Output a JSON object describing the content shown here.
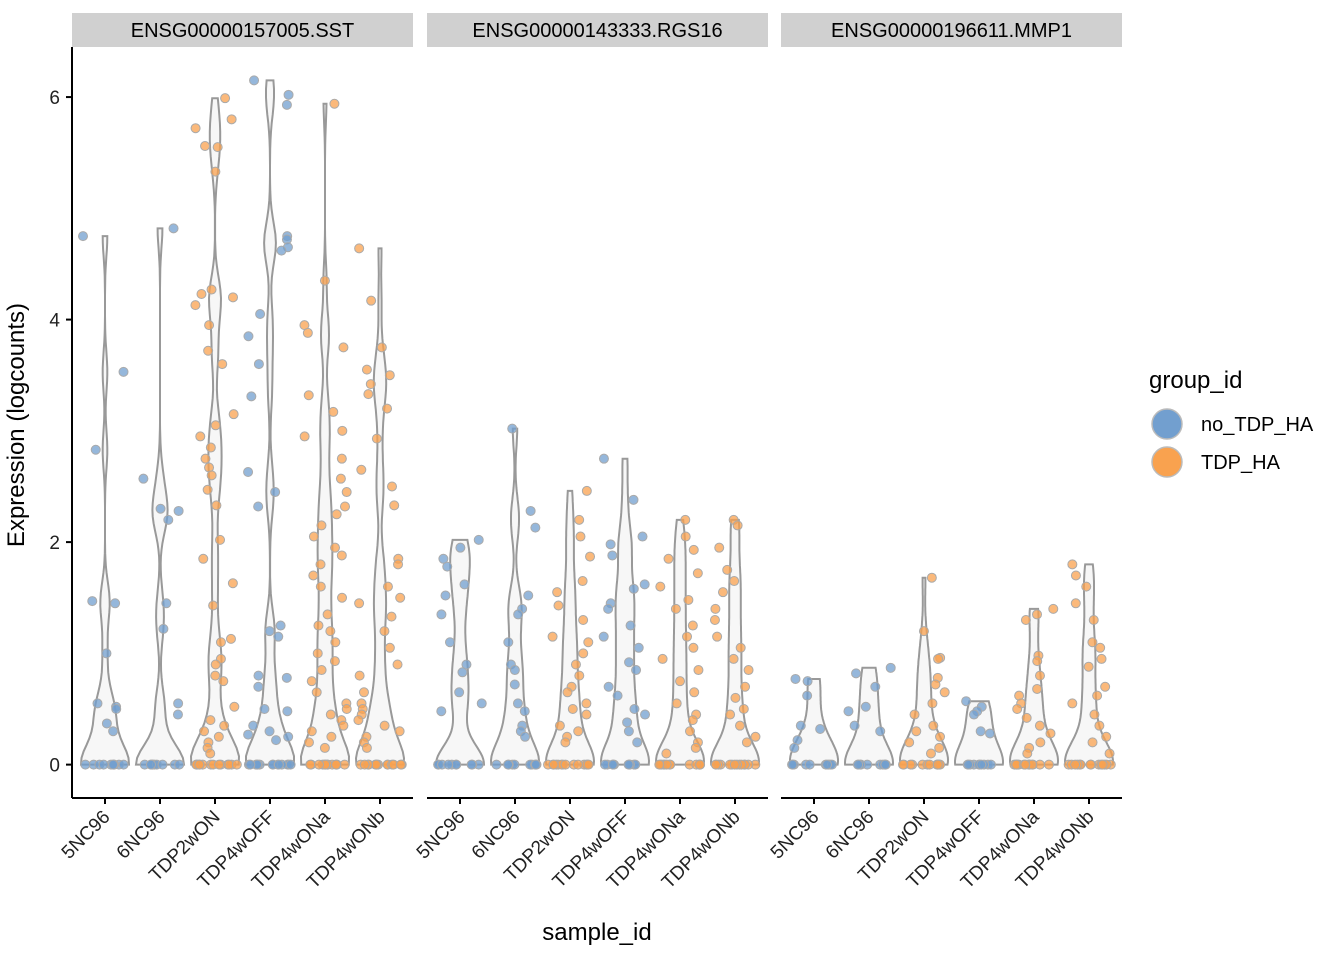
{
  "chart_data": {
    "type": "violin",
    "y_label": "Expression (logcounts)",
    "x_label": "sample_id",
    "legend_title": "group_id",
    "ylim": [
      -0.3,
      6.45
    ],
    "yticks": [
      0,
      2,
      4,
      6
    ],
    "categories": [
      "5NC96",
      "6NC96",
      "TDP2wON",
      "TDP4wOFF",
      "TDP4wONa",
      "TDP4wONb"
    ],
    "category_series": [
      0,
      0,
      1,
      0,
      1,
      1
    ],
    "series": [
      {
        "name": "no_TDP_HA",
        "color": "#729fcf"
      },
      {
        "name": "TDP_HA",
        "color": "#f9a24f"
      }
    ],
    "panels": [
      {
        "title": "ENSG00000157005.SST",
        "values": [
          [
            4.75,
            3.53,
            2.83,
            1.47,
            1.45,
            1.0,
            0.55,
            0.52,
            0.5,
            0.37,
            0.3,
            0,
            0,
            0,
            0,
            0,
            0,
            0,
            0,
            0,
            0
          ],
          [
            4.82,
            2.57,
            2.3,
            2.28,
            2.2,
            1.45,
            1.22,
            0.55,
            0.45,
            0,
            0,
            0,
            0,
            0,
            0,
            0,
            0,
            0,
            0
          ],
          [
            5.99,
            5.8,
            5.72,
            5.56,
            5.55,
            5.33,
            4.27,
            4.23,
            4.2,
            4.13,
            3.95,
            3.72,
            3.6,
            3.15,
            3.05,
            2.95,
            2.85,
            2.75,
            2.67,
            2.6,
            2.47,
            2.33,
            2.02,
            1.85,
            1.63,
            1.43,
            1.13,
            1.1,
            0.95,
            0.9,
            0.8,
            0.75,
            0.52,
            0.4,
            0.35,
            0.3,
            0.25,
            0.2,
            0.15,
            0.1,
            0,
            0,
            0,
            0,
            0,
            0,
            0,
            0,
            0,
            0,
            0,
            0,
            0,
            0
          ],
          [
            6.15,
            6.02,
            5.93,
            4.75,
            4.72,
            4.65,
            4.62,
            4.05,
            3.85,
            3.6,
            3.31,
            2.63,
            2.45,
            2.32,
            1.25,
            1.2,
            1.15,
            0.8,
            0.78,
            0.7,
            0.5,
            0.48,
            0.35,
            0.3,
            0.27,
            0.25,
            0.22,
            0,
            0,
            0,
            0,
            0,
            0,
            0,
            0,
            0,
            0,
            0,
            0,
            0,
            0
          ],
          [
            5.94,
            4.35,
            3.95,
            3.88,
            3.75,
            3.32,
            3.17,
            3.0,
            2.95,
            2.75,
            2.57,
            2.45,
            2.32,
            2.25,
            2.15,
            2.05,
            1.95,
            1.88,
            1.8,
            1.7,
            1.6,
            1.5,
            1.35,
            1.25,
            1.2,
            1.1,
            1.0,
            0.93,
            0.85,
            0.75,
            0.65,
            0.55,
            0.5,
            0.45,
            0.4,
            0.35,
            0.3,
            0.25,
            0.2,
            0.15,
            0,
            0,
            0,
            0,
            0,
            0,
            0,
            0,
            0,
            0,
            0,
            0,
            0,
            0
          ],
          [
            4.64,
            4.17,
            3.75,
            3.55,
            3.5,
            3.42,
            3.33,
            3.2,
            2.93,
            2.65,
            2.5,
            2.33,
            1.85,
            1.8,
            1.6,
            1.5,
            1.45,
            1.33,
            1.2,
            1.05,
            0.9,
            0.8,
            0.65,
            0.55,
            0.5,
            0.45,
            0.4,
            0.35,
            0.3,
            0.25,
            0.2,
            0.15,
            0,
            0,
            0,
            0,
            0,
            0,
            0,
            0,
            0,
            0,
            0,
            0,
            0,
            0
          ]
        ]
      },
      {
        "title": "ENSG00000143333.RGS16",
        "values": [
          [
            2.02,
            1.95,
            1.85,
            1.78,
            1.62,
            1.52,
            1.35,
            1.1,
            0.9,
            0.83,
            0.65,
            0.55,
            0.48,
            0,
            0,
            0,
            0,
            0,
            0,
            0,
            0,
            0,
            0
          ],
          [
            3.02,
            2.28,
            2.13,
            1.52,
            1.4,
            1.35,
            1.1,
            0.9,
            0.85,
            0.72,
            0.55,
            0.48,
            0.35,
            0.3,
            0.25,
            0,
            0,
            0,
            0,
            0,
            0,
            0,
            0,
            0,
            0
          ],
          [
            2.46,
            2.2,
            2.05,
            1.87,
            1.65,
            1.55,
            1.43,
            1.3,
            1.15,
            1.1,
            1.0,
            0.9,
            0.8,
            0.7,
            0.65,
            0.55,
            0.5,
            0.45,
            0.35,
            0.3,
            0.25,
            0.2,
            0,
            0,
            0,
            0,
            0,
            0,
            0,
            0,
            0,
            0,
            0,
            0,
            0,
            0
          ],
          [
            2.75,
            2.38,
            2.05,
            1.98,
            1.88,
            1.62,
            1.58,
            1.45,
            1.4,
            1.25,
            1.15,
            1.05,
            0.92,
            0.85,
            0.7,
            0.62,
            0.5,
            0.45,
            0.38,
            0.3,
            0.2,
            0,
            0,
            0,
            0,
            0,
            0,
            0,
            0,
            0,
            0
          ],
          [
            2.2,
            2.05,
            1.93,
            1.85,
            1.72,
            1.6,
            1.48,
            1.4,
            1.25,
            1.15,
            1.05,
            0.95,
            0.85,
            0.75,
            0.65,
            0.55,
            0.45,
            0.4,
            0.3,
            0.2,
            0.15,
            0.1,
            0,
            0,
            0,
            0,
            0,
            0,
            0,
            0,
            0,
            0,
            0,
            0,
            0,
            0
          ],
          [
            2.2,
            2.15,
            1.95,
            1.75,
            1.65,
            1.55,
            1.4,
            1.3,
            1.15,
            1.05,
            0.95,
            0.85,
            0.7,
            0.6,
            0.5,
            0.45,
            0.35,
            0.25,
            0.2,
            0,
            0,
            0,
            0,
            0,
            0,
            0,
            0,
            0,
            0,
            0,
            0,
            0,
            0
          ]
        ]
      },
      {
        "title": "ENSG00000196611.MMP1",
        "values": [
          [
            0.77,
            0.75,
            0.62,
            0.35,
            0.32,
            0.22,
            0.15,
            0,
            0,
            0,
            0,
            0,
            0,
            0,
            0,
            0,
            0
          ],
          [
            0.87,
            0.82,
            0.7,
            0.52,
            0.48,
            0.35,
            0.3,
            0,
            0,
            0,
            0,
            0,
            0,
            0,
            0,
            0,
            0
          ],
          [
            1.68,
            1.2,
            0.96,
            0.95,
            0.78,
            0.72,
            0.65,
            0.55,
            0.45,
            0.35,
            0.3,
            0.25,
            0.2,
            0.15,
            0.1,
            0,
            0,
            0,
            0,
            0,
            0,
            0,
            0,
            0,
            0,
            0,
            0,
            0,
            0
          ],
          [
            0.57,
            0.52,
            0.48,
            0.45,
            0.3,
            0.28,
            0,
            0,
            0,
            0,
            0,
            0,
            0,
            0,
            0,
            0
          ],
          [
            1.4,
            1.35,
            1.3,
            0.98,
            0.93,
            0.8,
            0.68,
            0.62,
            0.55,
            0.5,
            0.42,
            0.35,
            0.28,
            0.2,
            0.15,
            0.1,
            0,
            0,
            0,
            0,
            0,
            0,
            0,
            0,
            0,
            0,
            0,
            0,
            0,
            0
          ],
          [
            1.8,
            1.7,
            1.6,
            1.45,
            1.3,
            1.1,
            1.05,
            0.95,
            0.88,
            0.7,
            0.62,
            0.55,
            0.45,
            0.35,
            0.25,
            0.2,
            0.1,
            0,
            0,
            0,
            0,
            0,
            0,
            0,
            0,
            0,
            0,
            0,
            0,
            0,
            0
          ]
        ]
      }
    ]
  }
}
